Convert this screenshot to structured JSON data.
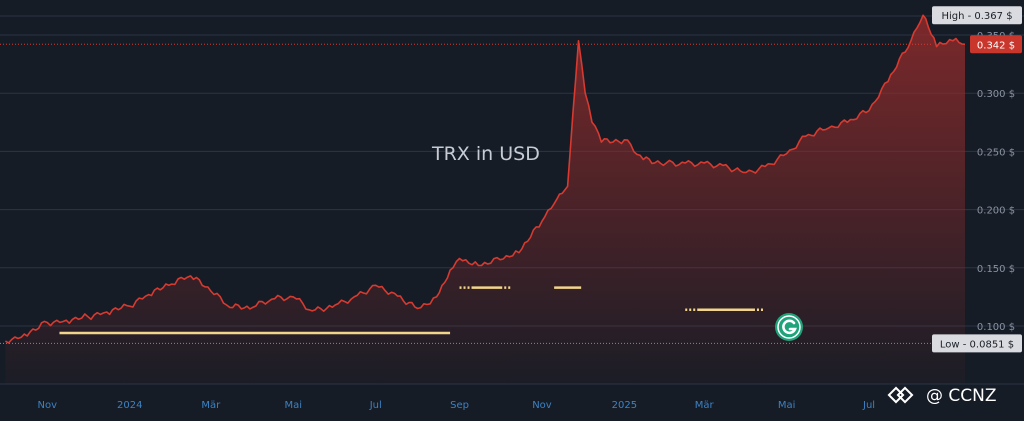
{
  "chart_data": {
    "type": "area",
    "title": "TRX in USD",
    "xlabel": "",
    "ylabel": "",
    "ylim": [
      0.05,
      0.38
    ],
    "y_ticks": [
      "0.100 $",
      "0.150 $",
      "0.200 $",
      "0.250 $",
      "0.300 $",
      "0.350 $"
    ],
    "x_ticks": [
      "Nov",
      "2024",
      "Mär",
      "Mai",
      "Jul",
      "Sep",
      "Nov",
      "2025",
      "Mär",
      "Mai",
      "Jul"
    ],
    "grid": true,
    "series": [
      {
        "x": [
          "2023-10-01",
          "2023-10-15",
          "2023-11-01",
          "2023-11-15",
          "2023-12-01",
          "2023-12-15",
          "2024-01-01",
          "2024-01-15",
          "2024-02-01",
          "2024-02-15",
          "2024-03-01",
          "2024-03-15",
          "2024-04-01",
          "2024-04-15",
          "2024-05-01",
          "2024-05-15",
          "2024-06-01",
          "2024-06-15",
          "2024-07-01",
          "2024-07-15",
          "2024-08-01",
          "2024-08-15",
          "2024-08-25",
          "2024-09-01",
          "2024-09-15",
          "2024-10-01",
          "2024-10-15",
          "2024-11-01",
          "2024-11-10",
          "2024-11-20",
          "2024-11-28",
          "2024-12-03",
          "2024-12-08",
          "2024-12-15",
          "2025-01-01",
          "2025-01-15",
          "2025-02-01",
          "2025-02-15",
          "2025-03-01",
          "2025-03-15",
          "2025-04-01",
          "2025-04-15",
          "2025-05-01",
          "2025-05-15",
          "2025-06-01",
          "2025-06-15",
          "2025-07-01",
          "2025-07-15",
          "2025-08-01",
          "2025-08-10",
          "2025-08-20",
          "2025-09-01",
          "2025-09-10"
        ],
        "values": [
          0.087,
          0.093,
          0.103,
          0.105,
          0.108,
          0.112,
          0.117,
          0.127,
          0.136,
          0.143,
          0.13,
          0.116,
          0.116,
          0.123,
          0.125,
          0.113,
          0.118,
          0.125,
          0.135,
          0.128,
          0.115,
          0.125,
          0.148,
          0.158,
          0.152,
          0.157,
          0.163,
          0.19,
          0.205,
          0.22,
          0.345,
          0.3,
          0.275,
          0.258,
          0.26,
          0.243,
          0.24,
          0.24,
          0.24,
          0.238,
          0.232,
          0.237,
          0.248,
          0.263,
          0.27,
          0.275,
          0.285,
          0.31,
          0.345,
          0.367,
          0.34,
          0.345,
          0.342
        ]
      }
    ],
    "line_color": "#d63a30",
    "fill_color": "#8e2b2b",
    "current": {
      "label": "0.342 $",
      "value": 0.342
    },
    "high": {
      "label": "High - 0.367 $",
      "value": 0.367
    },
    "low": {
      "label": "Low - 0.0851 $",
      "value": 0.0851
    },
    "annotation_color": "#f2d58a",
    "annotations": [
      {
        "start": "2023-11-10",
        "end": "2024-08-25",
        "value": 0.094,
        "dotted_ends": false
      },
      {
        "start": "2024-09-01",
        "end": "2024-10-10",
        "value": 0.133,
        "dotted_ends": true
      },
      {
        "start": "2024-11-10",
        "end": "2024-11-30",
        "value": 0.133,
        "dotted_ends": false
      },
      {
        "start": "2025-02-15",
        "end": "2025-04-15",
        "value": 0.114,
        "dotted_ends": true
      }
    ],
    "badge_icon": "g-circle-icon"
  },
  "watermark": {
    "text": "@ CCNZ",
    "icon": "diamond-logo-icon"
  }
}
